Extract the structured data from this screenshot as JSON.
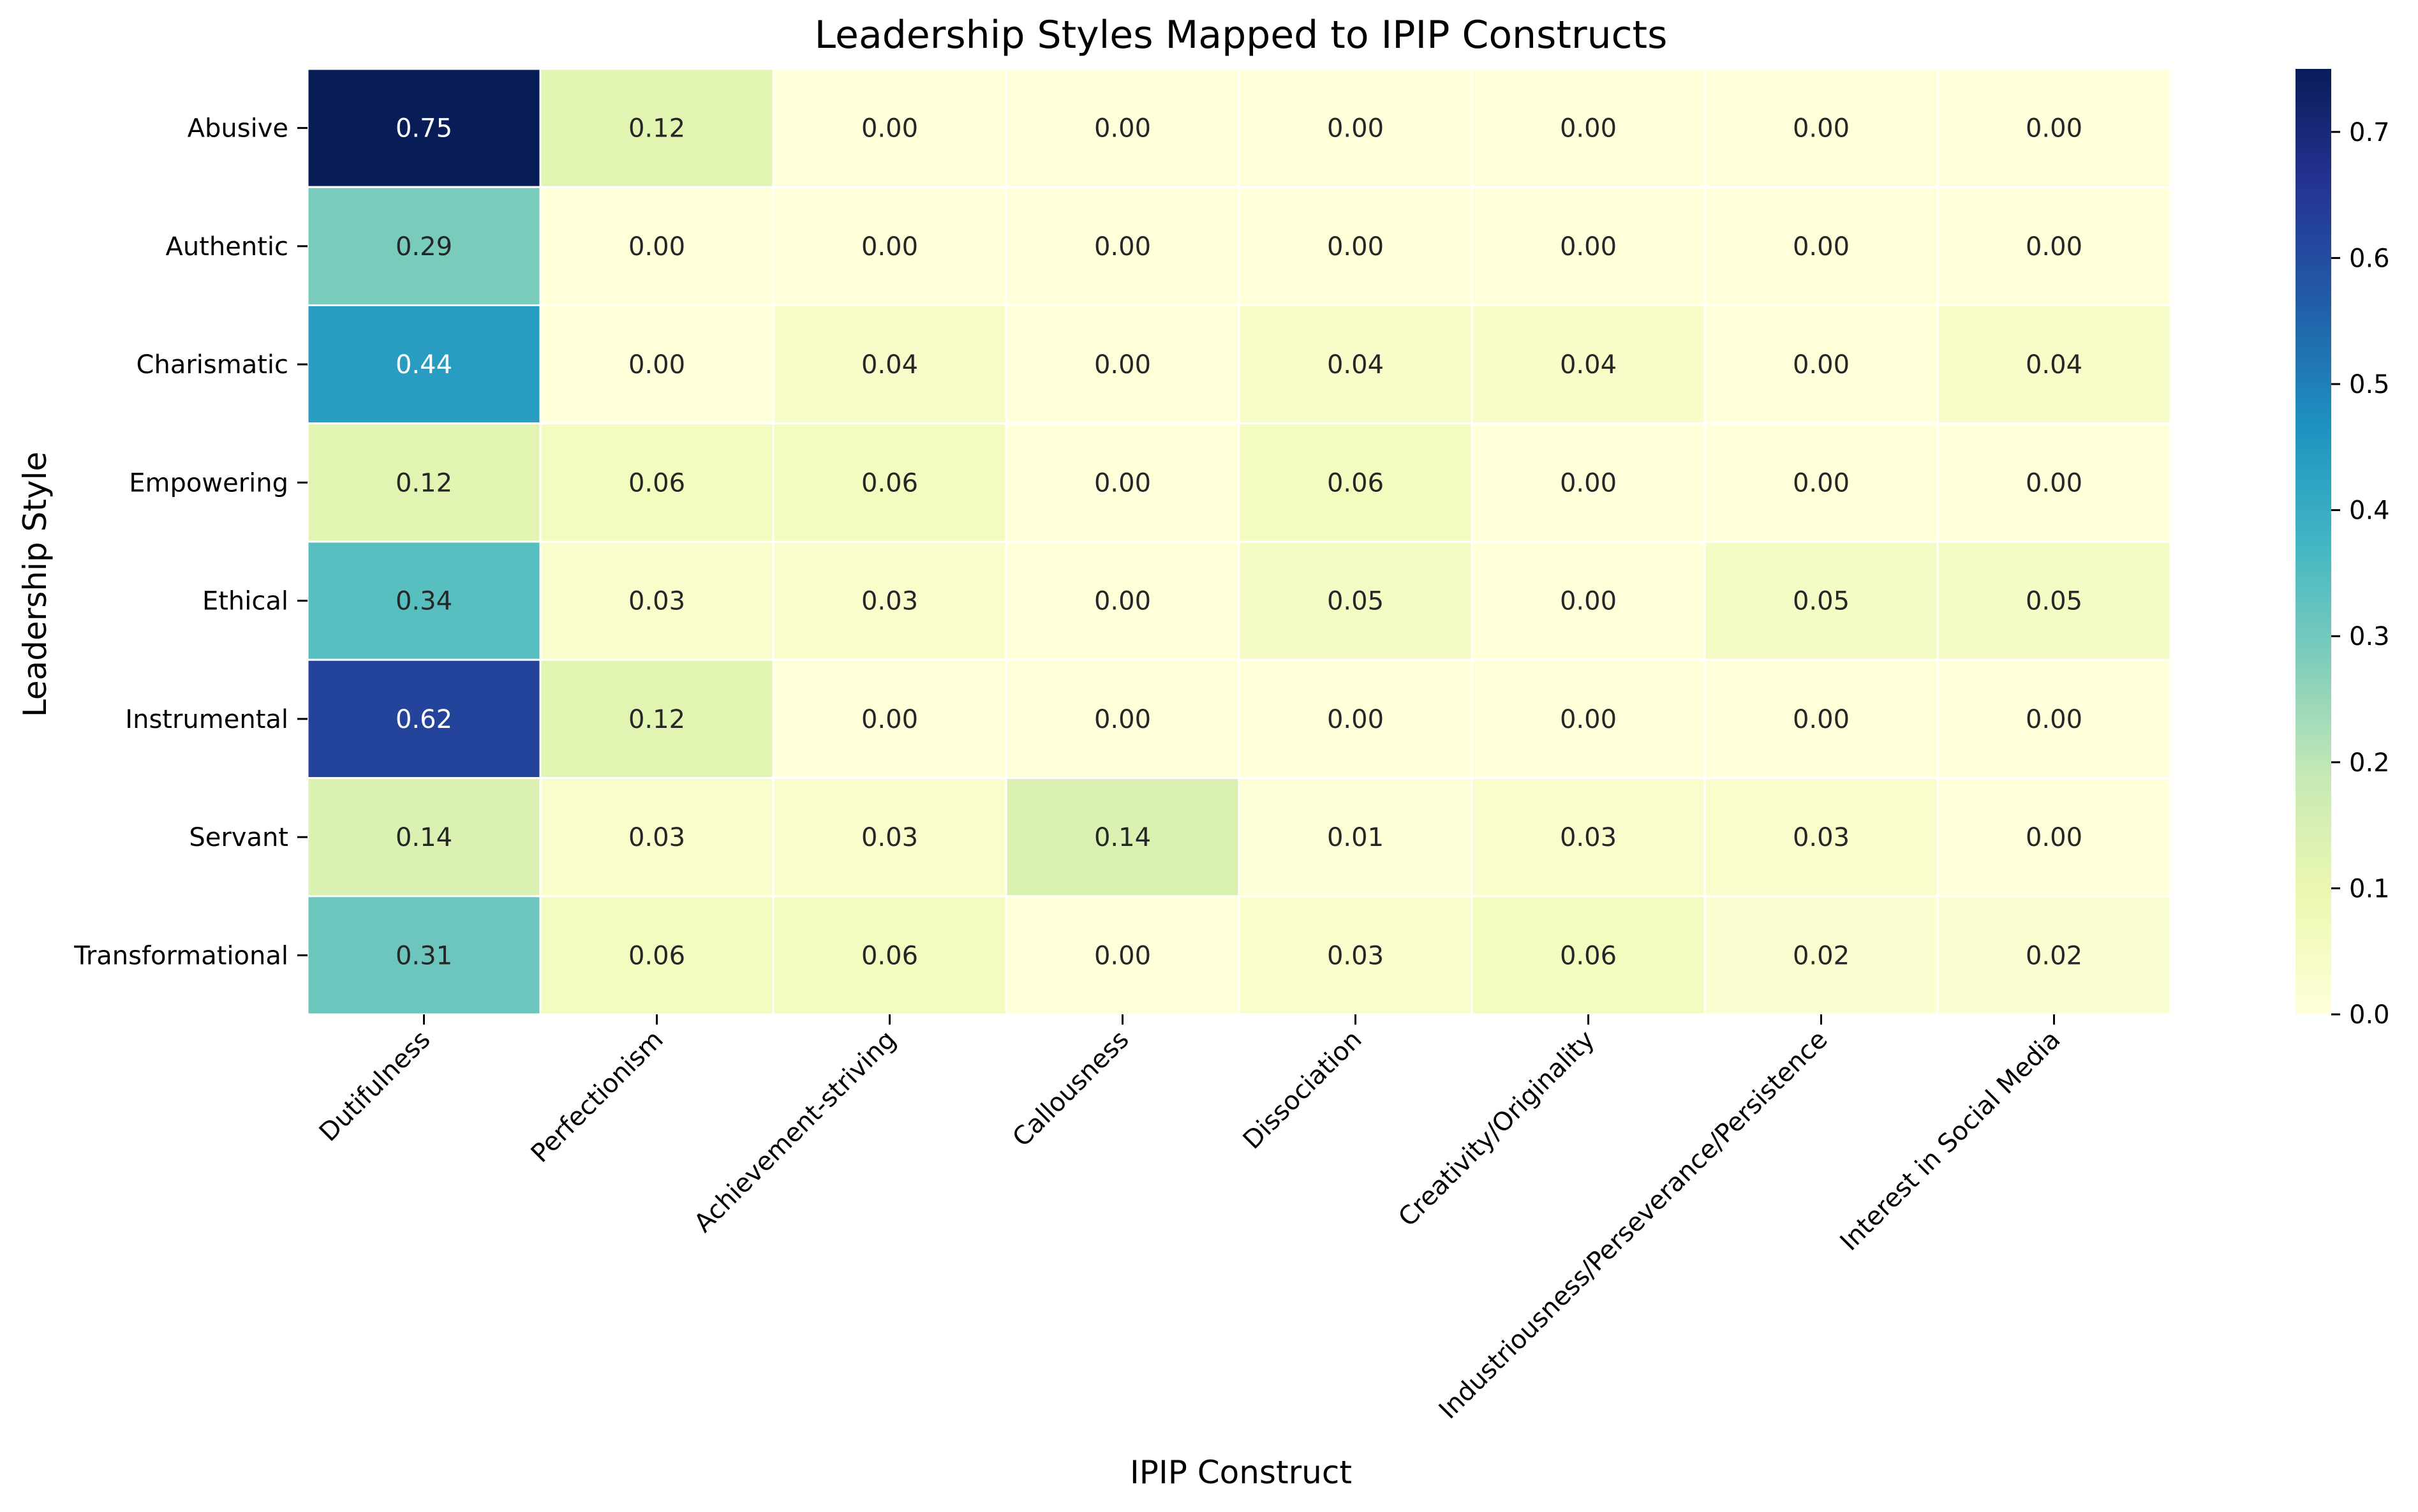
{
  "chart_data": {
    "type": "heatmap",
    "title": "Leadership Styles Mapped to IPIP Constructs",
    "xlabel": "IPIP Construct",
    "ylabel": "Leadership Style",
    "rows": [
      "Abusive",
      "Authentic",
      "Charismatic",
      "Empowering",
      "Ethical",
      "Instrumental",
      "Servant",
      "Transformational"
    ],
    "columns": [
      "Dutifulness",
      "Perfectionism",
      "Achievement-striving",
      "Callousness",
      "Dissociation",
      "Creativity/Originality",
      "Industriousness/Perseverance/Persistence",
      "Interest in Social Media"
    ],
    "values": [
      [
        0.75,
        0.12,
        0.0,
        0.0,
        0.0,
        0.0,
        0.0,
        0.0
      ],
      [
        0.29,
        0.0,
        0.0,
        0.0,
        0.0,
        0.0,
        0.0,
        0.0
      ],
      [
        0.44,
        0.0,
        0.04,
        0.0,
        0.04,
        0.04,
        0.0,
        0.04
      ],
      [
        0.12,
        0.06,
        0.06,
        0.0,
        0.06,
        0.0,
        0.0,
        0.0
      ],
      [
        0.34,
        0.03,
        0.03,
        0.0,
        0.05,
        0.0,
        0.05,
        0.05
      ],
      [
        0.62,
        0.12,
        0.0,
        0.0,
        0.0,
        0.0,
        0.0,
        0.0
      ],
      [
        0.14,
        0.03,
        0.03,
        0.14,
        0.01,
        0.03,
        0.03,
        0.0
      ],
      [
        0.31,
        0.06,
        0.06,
        0.0,
        0.03,
        0.06,
        0.02,
        0.02
      ]
    ],
    "value_format": "0.00",
    "colormap": "YlGnBu",
    "colormap_stops": [
      "#ffffd9",
      "#edf8b1",
      "#c7e9b4",
      "#7fcdbb",
      "#41b6c4",
      "#1d91c0",
      "#225ea8",
      "#253494",
      "#081d58"
    ],
    "colorbar": {
      "range": [
        0,
        0.75
      ],
      "ticks": [
        "0.0",
        "0.1",
        "0.2",
        "0.3",
        "0.4",
        "0.5",
        "0.6",
        "0.7"
      ],
      "tick_values": [
        0,
        0.1,
        0.2,
        0.3,
        0.4,
        0.5,
        0.6,
        0.7
      ]
    },
    "grid_line_color": "#ffffff"
  }
}
